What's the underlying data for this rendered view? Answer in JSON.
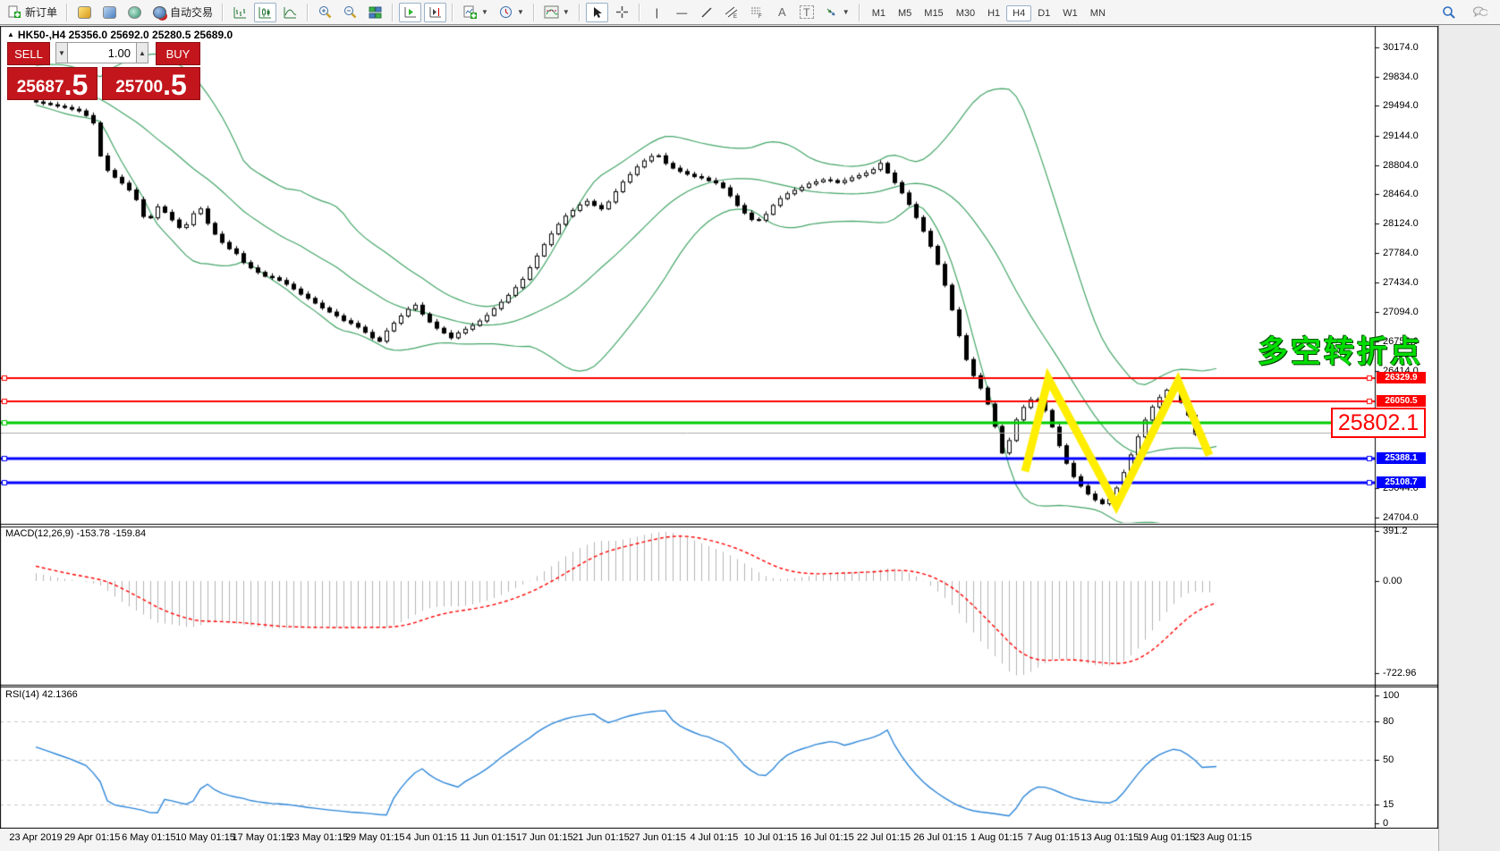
{
  "toolbar": {
    "new_order_label": "新订单",
    "autotrading_label": "自动交易",
    "timeframes": [
      "M1",
      "M5",
      "M15",
      "M30",
      "H1",
      "H4",
      "D1",
      "W1",
      "MN"
    ],
    "active_timeframe": "H4"
  },
  "chart_header": {
    "symbol_period": "HK50-,H4",
    "ohlc": "25356.0 25692.0 25280.5 25689.0"
  },
  "trade_panel": {
    "sell_label": "SELL",
    "buy_label": "BUY",
    "volume": "1.00",
    "sell_price_main": "25687",
    "sell_price_frac": ".5",
    "buy_price_main": "25700",
    "buy_price_frac": ".5"
  },
  "price_axis": {
    "ticks": [
      30174.0,
      29834.0,
      29494.0,
      29144.0,
      28804.0,
      28464.0,
      28124.0,
      27784.0,
      27434.0,
      27094.0,
      26754.0,
      26414.0,
      25044.0,
      24704.0
    ]
  },
  "macd": {
    "label": "MACD(12,26,9) -153.78 -159.84",
    "axis_values": [
      {
        "v": 391.2,
        "label": "391.2"
      },
      {
        "v": 0,
        "label": "0.00"
      },
      {
        "v": -722.96,
        "label": "-722.96"
      }
    ]
  },
  "rsi": {
    "label": "RSI(14) 42.1366",
    "axis_values": [
      {
        "v": 100,
        "label": "100",
        "dash": false
      },
      {
        "v": 80,
        "label": "80",
        "dash": true
      },
      {
        "v": 50,
        "label": "50",
        "dash": true
      },
      {
        "v": 15,
        "label": "15",
        "dash": true
      },
      {
        "v": 0,
        "label": "0",
        "dash": false
      }
    ]
  },
  "time_axis": {
    "labels": [
      "23 Apr 2019",
      "29 Apr 01:15",
      "6 May 01:15",
      "10 May 01:15",
      "17 May 01:15",
      "23 May 01:15",
      "29 May 01:15",
      "4 Jun 01:15",
      "11 Jun 01:15",
      "17 Jun 01:15",
      "21 Jun 01:15",
      "27 Jun 01:15",
      "4 Jul 01:15",
      "10 Jul 01:15",
      "16 Jul 01:15",
      "22 Jul 01:15",
      "26 Jul 01:15",
      "1 Aug 01:15",
      "7 Aug 01:15",
      "13 Aug 01:15",
      "19 Aug 01:15",
      "23 Aug 01:15"
    ]
  },
  "annotations": {
    "turning_point_text": "多空转折点",
    "price_callout": "25802.1"
  },
  "chart_data": {
    "type": "candlestick",
    "symbol": "HK50-",
    "timeframe": "H4",
    "title_ohlc": {
      "open": 25356.0,
      "high": 25692.0,
      "low": 25280.5,
      "close": 25689.0
    },
    "current_price": 25689.0,
    "price_range_visible": [
      24704.0,
      30174.0
    ],
    "levels": [
      {
        "price": 26329.9,
        "color": "#ff0000",
        "width": 2
      },
      {
        "price": 26050.5,
        "color": "#ff0000",
        "width": 2
      },
      {
        "price": 25802.1,
        "color": "#00cc00",
        "width": 3
      },
      {
        "price": 25388.1,
        "color": "#0000ff",
        "width": 3
      },
      {
        "price": 25108.7,
        "color": "#0000ff",
        "width": 3
      }
    ],
    "current_price_line": {
      "price": 25689.0,
      "color": "#ababab",
      "label_bg": "#000000"
    },
    "bollinger": {
      "period": 20,
      "deviation": 2,
      "color": "#43a567"
    },
    "macd_params": {
      "fast": 12,
      "slow": 26,
      "signal": 9,
      "main": -153.78,
      "signal_value": -159.84,
      "scale_max": 391.2,
      "scale_min": -722.96
    },
    "rsi_params": {
      "period": 14,
      "value": 42.1366
    },
    "zigzag_annotation": {
      "color": "#ffee00",
      "points": [
        [
          1146,
          25240
        ],
        [
          1172,
          26320
        ],
        [
          1248,
          24845
        ],
        [
          1317,
          26290
        ],
        [
          1352,
          25430
        ]
      ]
    },
    "warmup_path": [
      [
        -200,
        28900
      ],
      [
        -120,
        29650
      ],
      [
        -72,
        29900
      ],
      [
        -40,
        29850
      ],
      [
        -8,
        29640
      ],
      [
        32,
        29570
      ]
    ],
    "price_path": [
      [
        40,
        29560
      ],
      [
        60,
        29520
      ],
      [
        80,
        29480
      ],
      [
        100,
        29430
      ],
      [
        112,
        29300
      ],
      [
        122,
        28820
      ],
      [
        132,
        28700
      ],
      [
        142,
        28620
      ],
      [
        152,
        28520
      ],
      [
        162,
        28380
      ],
      [
        172,
        28100
      ],
      [
        182,
        28340
      ],
      [
        192,
        28260
      ],
      [
        202,
        28150
      ],
      [
        212,
        28040
      ],
      [
        222,
        28230
      ],
      [
        232,
        28300
      ],
      [
        242,
        28090
      ],
      [
        252,
        27950
      ],
      [
        262,
        27850
      ],
      [
        272,
        27780
      ],
      [
        282,
        27650
      ],
      [
        292,
        27590
      ],
      [
        302,
        27520
      ],
      [
        312,
        27500
      ],
      [
        322,
        27460
      ],
      [
        332,
        27400
      ],
      [
        342,
        27320
      ],
      [
        352,
        27260
      ],
      [
        362,
        27190
      ],
      [
        372,
        27120
      ],
      [
        382,
        27070
      ],
      [
        392,
        27000
      ],
      [
        402,
        26960
      ],
      [
        412,
        26900
      ],
      [
        422,
        26810
      ],
      [
        432,
        26760
      ],
      [
        442,
        26910
      ],
      [
        452,
        27010
      ],
      [
        462,
        27120
      ],
      [
        472,
        27180
      ],
      [
        482,
        27050
      ],
      [
        492,
        26940
      ],
      [
        502,
        26870
      ],
      [
        512,
        26800
      ],
      [
        522,
        26870
      ],
      [
        532,
        26920
      ],
      [
        542,
        26980
      ],
      [
        552,
        27060
      ],
      [
        562,
        27160
      ],
      [
        572,
        27250
      ],
      [
        582,
        27360
      ],
      [
        592,
        27480
      ],
      [
        602,
        27650
      ],
      [
        612,
        27820
      ],
      [
        622,
        27980
      ],
      [
        632,
        28120
      ],
      [
        642,
        28240
      ],
      [
        652,
        28310
      ],
      [
        662,
        28400
      ],
      [
        672,
        28340
      ],
      [
        682,
        28290
      ],
      [
        692,
        28440
      ],
      [
        702,
        28590
      ],
      [
        712,
        28700
      ],
      [
        722,
        28810
      ],
      [
        732,
        28890
      ],
      [
        742,
        28940
      ],
      [
        752,
        28830
      ],
      [
        762,
        28760
      ],
      [
        772,
        28720
      ],
      [
        782,
        28680
      ],
      [
        792,
        28660
      ],
      [
        802,
        28620
      ],
      [
        812,
        28590
      ],
      [
        822,
        28480
      ],
      [
        832,
        28340
      ],
      [
        842,
        28230
      ],
      [
        852,
        28140
      ],
      [
        862,
        28210
      ],
      [
        872,
        28340
      ],
      [
        882,
        28440
      ],
      [
        892,
        28500
      ],
      [
        902,
        28540
      ],
      [
        912,
        28590
      ],
      [
        922,
        28620
      ],
      [
        932,
        28650
      ],
      [
        942,
        28600
      ],
      [
        952,
        28630
      ],
      [
        962,
        28670
      ],
      [
        972,
        28700
      ],
      [
        982,
        28740
      ],
      [
        992,
        28830
      ],
      [
        1002,
        28690
      ],
      [
        1012,
        28550
      ],
      [
        1022,
        28390
      ],
      [
        1032,
        28200
      ],
      [
        1042,
        28000
      ],
      [
        1050,
        27820
      ],
      [
        1058,
        27600
      ],
      [
        1066,
        27350
      ],
      [
        1074,
        27050
      ],
      [
        1082,
        26750
      ],
      [
        1090,
        26480
      ],
      [
        1098,
        26320
      ],
      [
        1106,
        26180
      ],
      [
        1114,
        25980
      ],
      [
        1122,
        25700
      ],
      [
        1130,
        25380
      ],
      [
        1138,
        25680
      ],
      [
        1146,
        25900
      ],
      [
        1154,
        26020
      ],
      [
        1162,
        26100
      ],
      [
        1170,
        26060
      ],
      [
        1178,
        25920
      ],
      [
        1186,
        25710
      ],
      [
        1194,
        25490
      ],
      [
        1202,
        25290
      ],
      [
        1210,
        25150
      ],
      [
        1218,
        25050
      ],
      [
        1226,
        24960
      ],
      [
        1234,
        24900
      ],
      [
        1242,
        24860
      ],
      [
        1250,
        24940
      ],
      [
        1258,
        25090
      ],
      [
        1266,
        25280
      ],
      [
        1274,
        25490
      ],
      [
        1282,
        25700
      ],
      [
        1290,
        25890
      ],
      [
        1298,
        26030
      ],
      [
        1306,
        26130
      ],
      [
        1314,
        26210
      ],
      [
        1322,
        26140
      ],
      [
        1330,
        26020
      ],
      [
        1338,
        25860
      ],
      [
        1346,
        25620
      ],
      [
        1352,
        25689
      ],
      [
        1360,
        25700
      ]
    ]
  }
}
